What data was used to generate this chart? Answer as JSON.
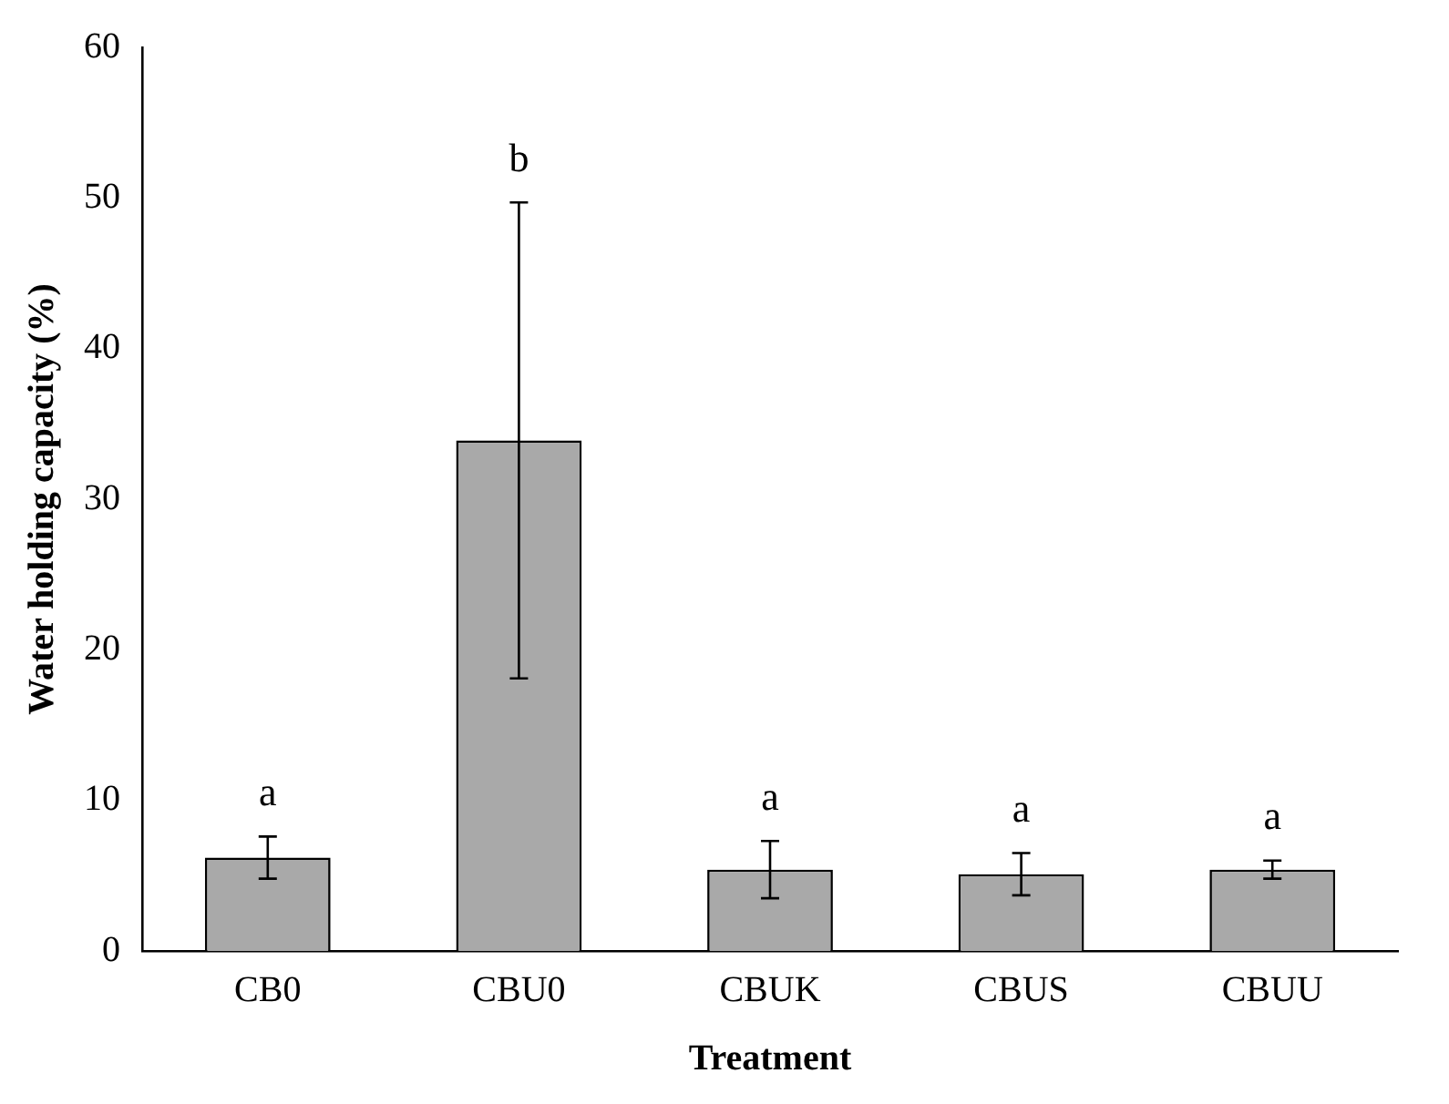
{
  "chart_data": {
    "type": "bar",
    "xlabel": "Treatment",
    "ylabel": "Water holding capacity (%)",
    "categories": [
      "CB0",
      "CBU0",
      "CBUK",
      "CBUS",
      "CBUU"
    ],
    "values": [
      6.2,
      33.9,
      5.4,
      5.1,
      5.4
    ],
    "errors": [
      1.4,
      15.8,
      1.9,
      1.4,
      0.6
    ],
    "color": "#a9a9a9",
    "ylim": [
      0,
      60
    ],
    "yticks": [
      0,
      10,
      20,
      30,
      40,
      50,
      60
    ],
    "grid": false,
    "legend": false,
    "annotations": [
      "a",
      "b",
      "a",
      "a",
      "a"
    ]
  }
}
